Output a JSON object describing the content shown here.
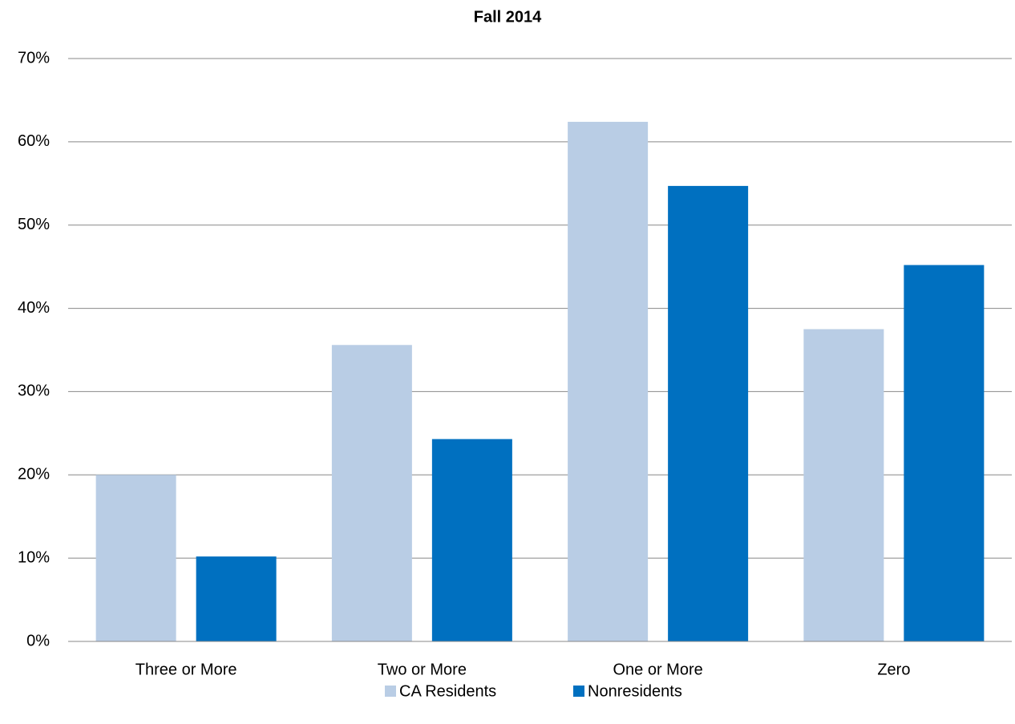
{
  "chart_data": {
    "type": "bar",
    "title": "Fall 2014",
    "categories": [
      "Three or More",
      "Two or More",
      "One or More",
      "Zero"
    ],
    "series": [
      {
        "name": "CA Residents",
        "color": "#b9cde5",
        "values": [
          20.0,
          35.6,
          62.4,
          37.5
        ]
      },
      {
        "name": "Nonresidents",
        "color": "#0070c0",
        "values": [
          10.2,
          24.3,
          54.7,
          45.2
        ]
      }
    ],
    "ylim": [
      0,
      70
    ],
    "yticks": [
      {
        "value": 0,
        "label": "0%"
      },
      {
        "value": 10,
        "label": "10%"
      },
      {
        "value": 20,
        "label": "20%"
      },
      {
        "value": 30,
        "label": "30%"
      },
      {
        "value": 40,
        "label": "40%"
      },
      {
        "value": 50,
        "label": "50%"
      },
      {
        "value": 60,
        "label": "60%"
      },
      {
        "value": 70,
        "label": "70%"
      }
    ],
    "grid": true,
    "legend": "bottom"
  }
}
